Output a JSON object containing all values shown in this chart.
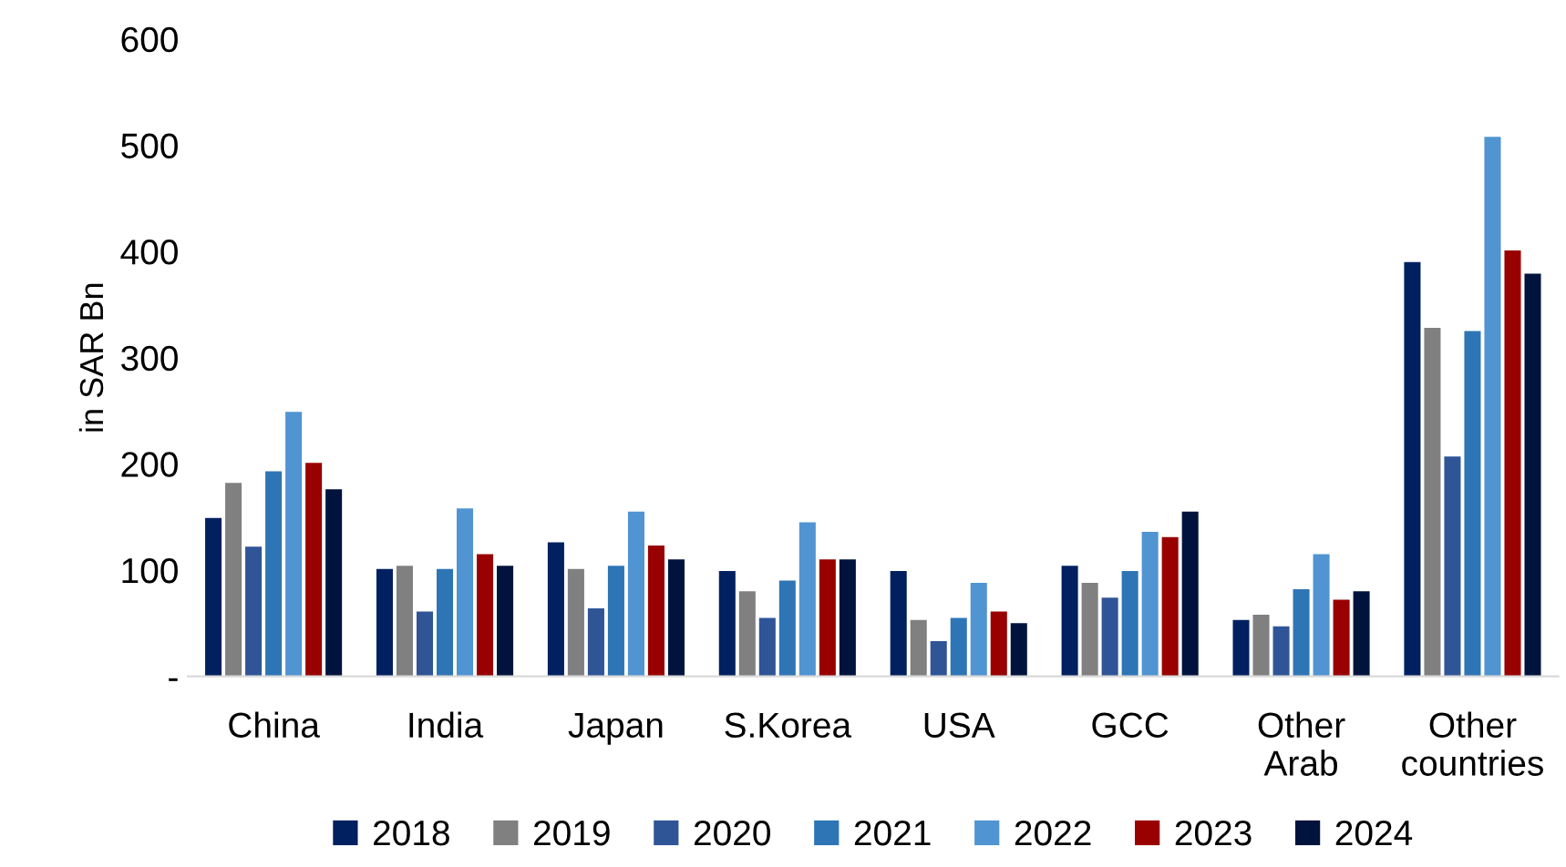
{
  "chart_data": {
    "type": "bar",
    "ylabel": "in SAR Bn",
    "categories": [
      "China",
      "India",
      "Japan",
      "S.Korea",
      "USA",
      "GCC",
      "Other\nArab",
      "Other\ncountries"
    ],
    "series": [
      {
        "name": "2018",
        "color": "#002060",
        "values": [
          149,
          101,
          126,
          99,
          99,
          104,
          53,
          390
        ]
      },
      {
        "name": "2019",
        "color": "#808080",
        "values": [
          182,
          104,
          101,
          80,
          53,
          88,
          58,
          328
        ]
      },
      {
        "name": "2020",
        "color": "#2f5597",
        "values": [
          122,
          61,
          64,
          55,
          33,
          74,
          47,
          207
        ]
      },
      {
        "name": "2021",
        "color": "#2e75b6",
        "values": [
          193,
          101,
          104,
          90,
          55,
          99,
          82,
          325
        ]
      },
      {
        "name": "2022",
        "color": "#5094d2",
        "values": [
          249,
          158,
          155,
          145,
          88,
          136,
          115,
          508
        ]
      },
      {
        "name": "2023",
        "color": "#990000",
        "values": [
          201,
          115,
          123,
          110,
          61,
          131,
          72,
          401
        ]
      },
      {
        "name": "2024",
        "color": "#00133d",
        "values": [
          176,
          104,
          110,
          110,
          50,
          155,
          80,
          379
        ]
      }
    ],
    "ylim": [
      0,
      600
    ],
    "yticks": [
      {
        "value": 0,
        "label": "-"
      },
      100,
      200,
      300,
      400,
      500,
      600
    ],
    "grid": false,
    "legend": "bottom"
  }
}
